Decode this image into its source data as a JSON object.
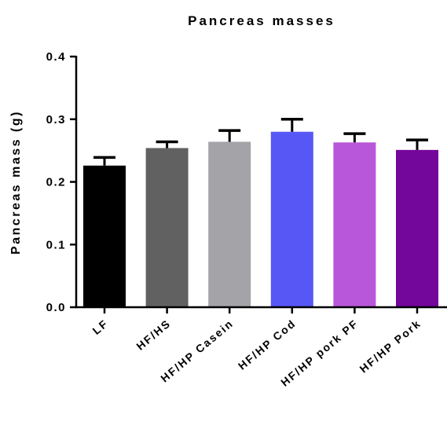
{
  "chart_data": {
    "type": "bar",
    "title": "Pancreas masses",
    "xlabel": "",
    "ylabel": "Pancreas mass (g)",
    "ylim": [
      0,
      0.4
    ],
    "yticks": [
      "0.0",
      "0.1",
      "0.2",
      "0.3",
      "0.4"
    ],
    "categories": [
      "LF",
      "HF/HS",
      "HF/HP Casein",
      "HF/HP Cod",
      "HF/HP pork PF",
      "HF/HP Pork"
    ],
    "values": [
      0.226,
      0.254,
      0.264,
      0.28,
      0.263,
      0.251
    ],
    "errors": [
      0.013,
      0.01,
      0.018,
      0.02,
      0.014,
      0.016
    ],
    "colors": [
      "#000000",
      "#616161",
      "#a3a3a8",
      "#5757f5",
      "#b857d9",
      "#73069b"
    ],
    "error_bar_color": "#000000",
    "grid": false,
    "legend": "none"
  }
}
